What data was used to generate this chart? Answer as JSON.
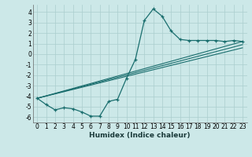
{
  "xlabel": "Humidex (Indice chaleur)",
  "background_color": "#cce8e8",
  "grid_color": "#aacece",
  "line_color": "#1a6e6e",
  "xlim": [
    -0.5,
    23.5
  ],
  "ylim": [
    -6.5,
    4.7
  ],
  "xticks": [
    0,
    1,
    2,
    3,
    4,
    5,
    6,
    7,
    8,
    9,
    10,
    11,
    12,
    13,
    14,
    15,
    16,
    17,
    18,
    19,
    20,
    21,
    22,
    23
  ],
  "yticks": [
    -6,
    -5,
    -4,
    -3,
    -2,
    -1,
    0,
    1,
    2,
    3,
    4
  ],
  "main_x": [
    0,
    1,
    2,
    3,
    4,
    5,
    6,
    7,
    8,
    9,
    10,
    11,
    12,
    13,
    14,
    15,
    16,
    17,
    18,
    19,
    20,
    21,
    22,
    23
  ],
  "main_y": [
    -4.2,
    -4.8,
    -5.3,
    -5.1,
    -5.2,
    -5.5,
    -5.9,
    -5.9,
    -4.5,
    -4.3,
    -2.3,
    -0.5,
    3.2,
    4.3,
    3.6,
    2.2,
    1.4,
    1.3,
    1.3,
    1.3,
    1.3,
    1.2,
    1.3,
    1.2
  ],
  "tline1_start": [
    -4.2
  ],
  "tline1_end": [
    1.2
  ],
  "tline2_start": [
    -4.2
  ],
  "tline2_end": [
    0.9
  ],
  "tline3_start": [
    -4.2
  ],
  "tline3_end": [
    0.6
  ],
  "tick_fontsize": 5.5,
  "xlabel_fontsize": 6.5
}
